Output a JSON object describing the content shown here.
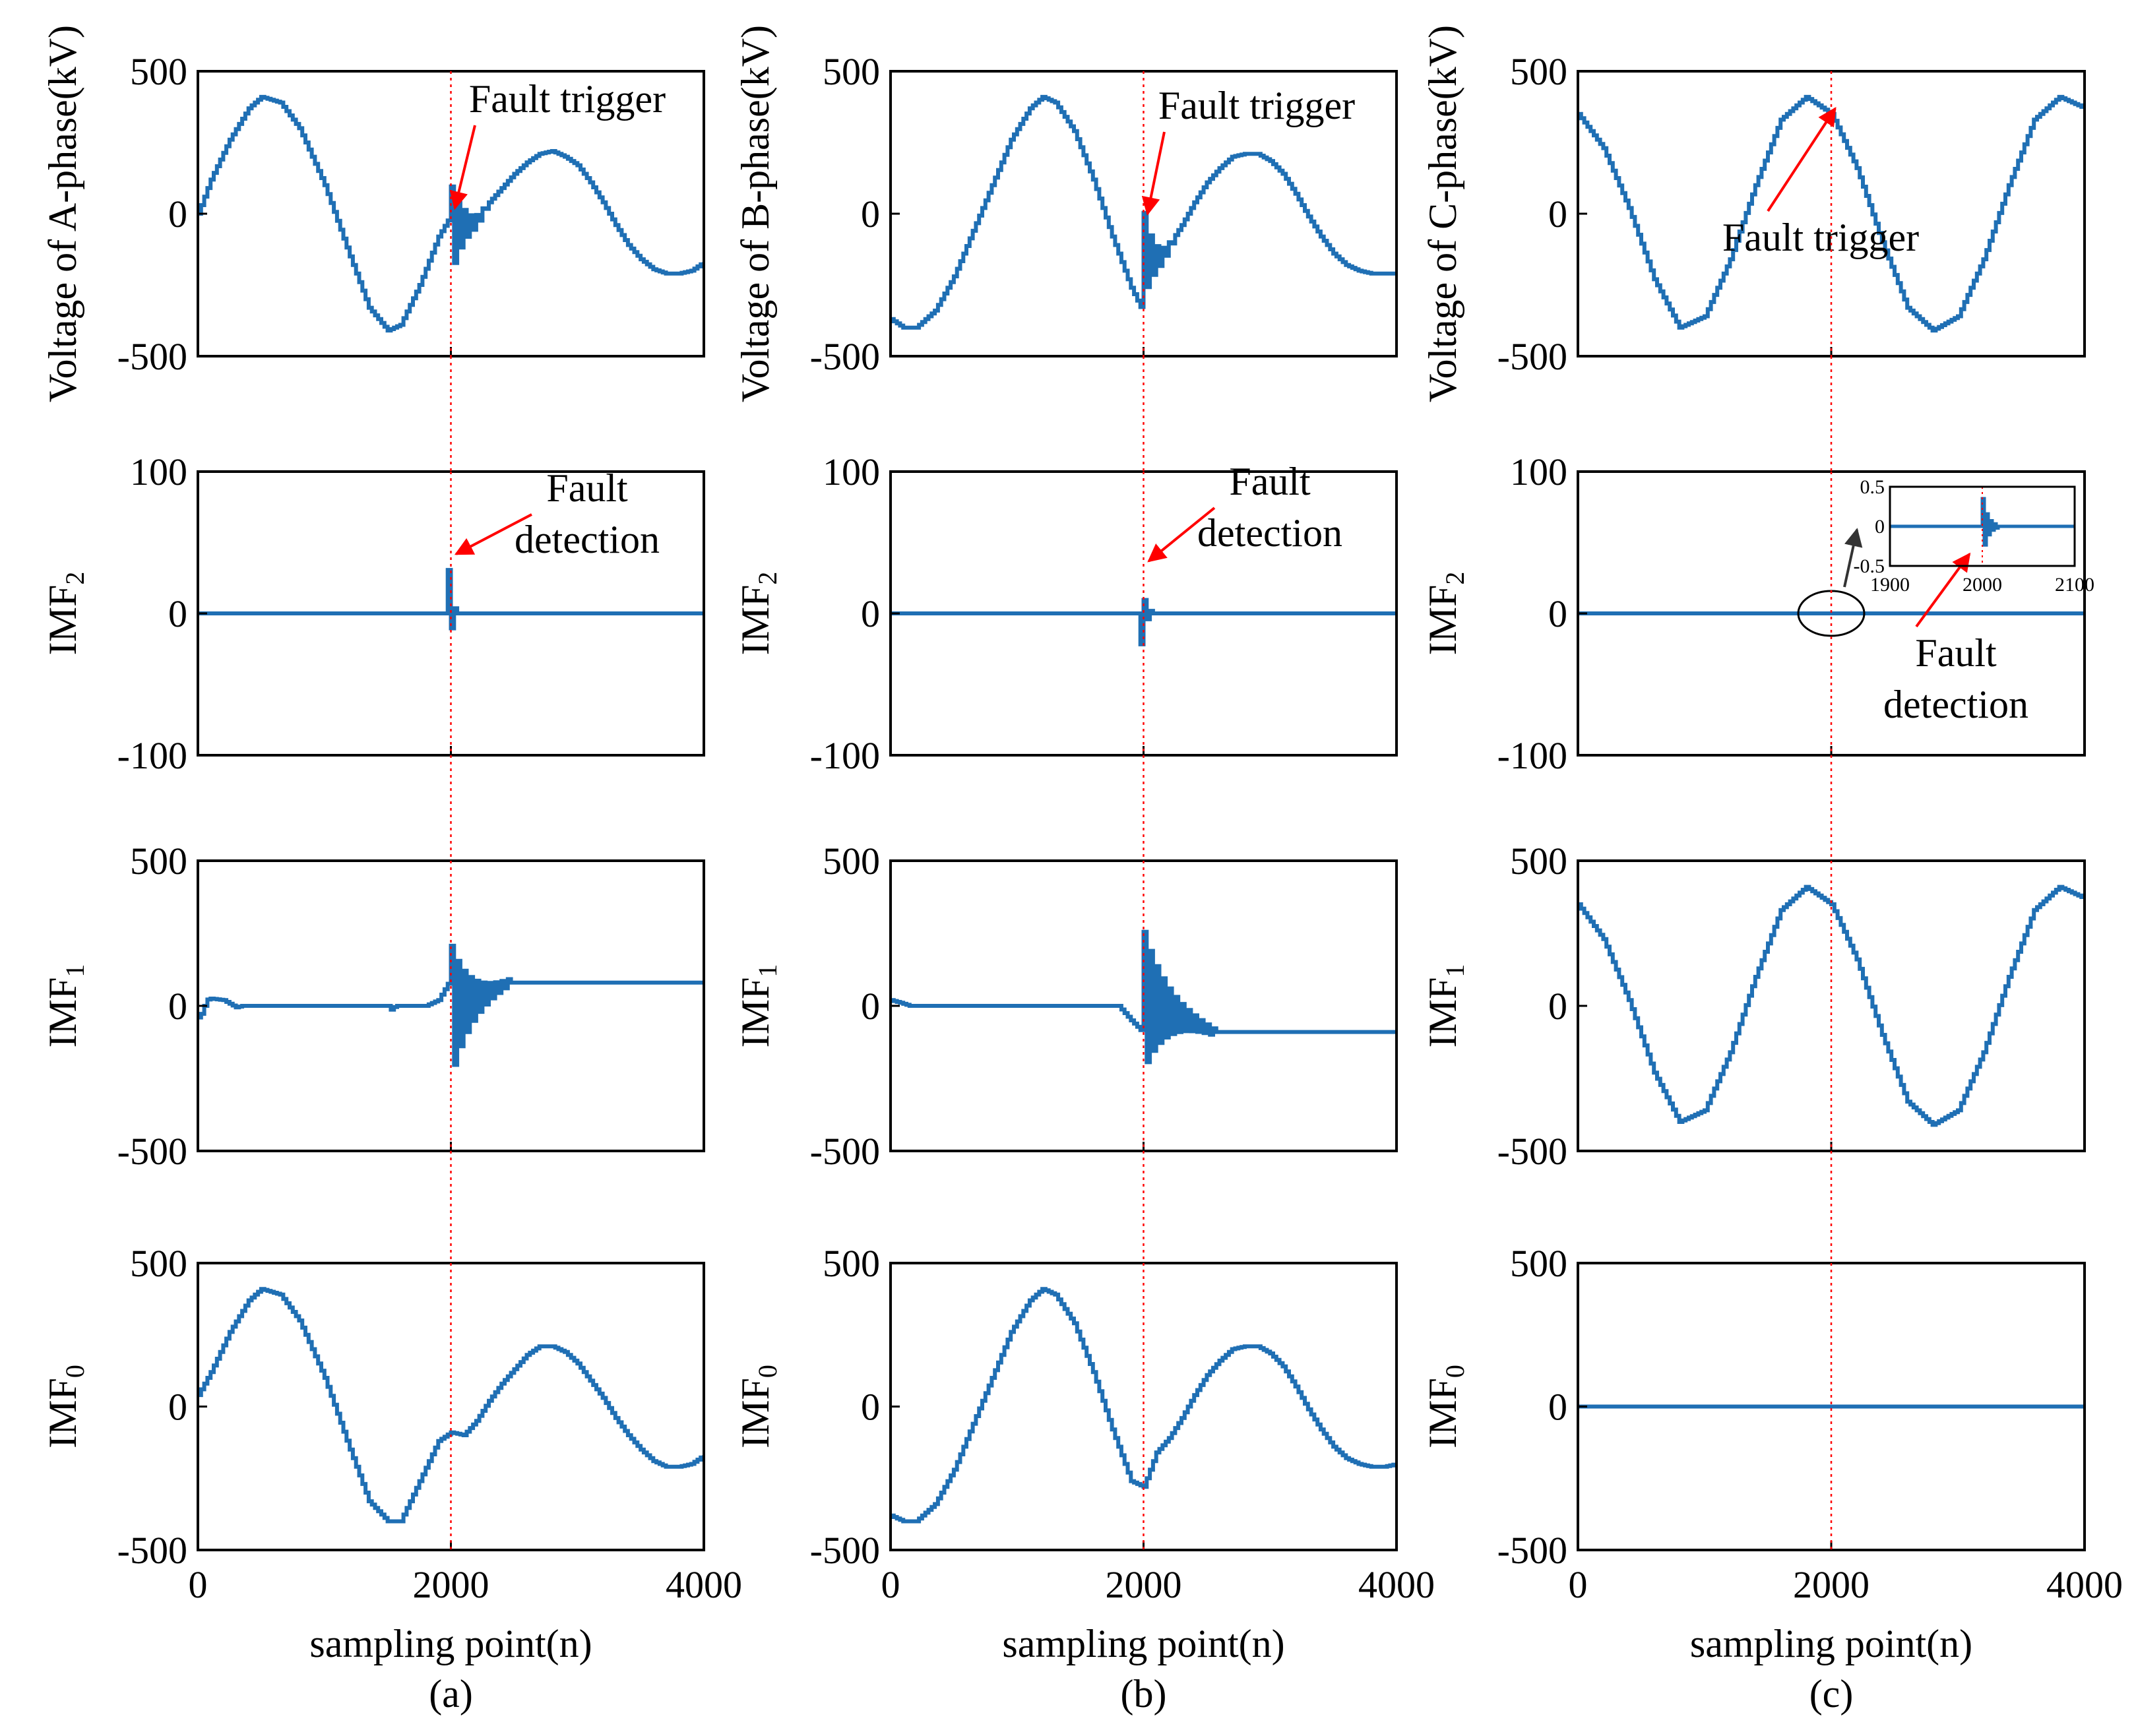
{
  "colors": {
    "signal": "#1f6fb4",
    "marker": "#ff0000",
    "arrow": "#ff0000",
    "inset_arrow": "#333333"
  },
  "fault_sample": 2000,
  "chart_data": [
    {
      "type": "line",
      "column_label": "(a)",
      "xlabel": "sampling point(n)",
      "xlim": [
        0,
        4000
      ],
      "xticks": [
        "0",
        "2000",
        "4000"
      ],
      "rows": [
        {
          "ylabel": "Voltage of A-phase(kV)",
          "ylabel_sub": "",
          "ylim": [
            -500,
            500
          ],
          "yticks": [
            "500",
            "0",
            "-500"
          ],
          "series": {
            "name": "",
            "x": [
              0,
              100,
              250,
              400,
              500,
              650,
              800,
              1000,
              1200,
              1350,
              1500,
              1600,
              1750,
              1900,
              1980,
              2000,
              2050,
              2100,
              2150,
              2200,
              2300,
              2400,
              2500,
              2600,
              2700,
              2800,
              2900,
              3000,
              3100,
              3200,
              3300,
              3400,
              3500,
              3600,
              3700,
              3800,
              3900,
              4000
            ],
            "y": [
              0,
              120,
              260,
              370,
              410,
              390,
              300,
              100,
              -150,
              -330,
              -410,
              -390,
              -250,
              -80,
              -20,
              0,
              -30,
              -10,
              -20,
              -10,
              40,
              90,
              140,
              180,
              210,
              220,
              200,
              170,
              110,
              40,
              -40,
              -110,
              -160,
              -195,
              -210,
              -210,
              -200,
              -170
            ]
          },
          "burst": {
            "x0": 1990,
            "x1": 2280,
            "amp": 170,
            "center": -60
          },
          "annotation": {
            "lines": [
              "Fault trigger"
            ],
            "target": [
              2000,
              10
            ]
          }
        },
        {
          "ylabel": "IMF",
          "ylabel_sub": "2",
          "ylim": [
            -100,
            100
          ],
          "yticks": [
            "100",
            "0",
            "-100"
          ],
          "series": {
            "name": "",
            "x": [
              0,
              4000
            ],
            "y": [
              0,
              0
            ]
          },
          "burst": {
            "x0": 1970,
            "x1": 2040,
            "amp": 38,
            "center": 0
          },
          "annotation": {
            "lines": [
              "Fault",
              "detection"
            ],
            "target": [
              2010,
              40
            ]
          }
        },
        {
          "ylabel": "IMF",
          "ylabel_sub": "1",
          "ylim": [
            -500,
            500
          ],
          "yticks": [
            "500",
            "0",
            "-500"
          ],
          "series": {
            "name": "",
            "x": [
              0,
              40,
              60,
              100,
              200,
              300,
              350,
              1500,
              1520,
              1560,
              1700,
              1800,
              1900,
              1980
            ],
            "y": [
              -40,
              -20,
              20,
              25,
              20,
              -5,
              0,
              0,
              -15,
              0,
              0,
              0,
              20,
              80
            ]
          },
          "burst": {
            "x0": 1990,
            "x1": 2450,
            "amp": 240,
            "center": -20
          },
          "annotation": null
        },
        {
          "ylabel": "IMF",
          "ylabel_sub": "0",
          "ylim": [
            -500,
            500
          ],
          "yticks": [
            "500",
            "0",
            "-500"
          ],
          "series": {
            "name": "",
            "x": [
              0,
              100,
              250,
              400,
              500,
              650,
              800,
              1000,
              1200,
              1350,
              1500,
              1600,
              1750,
              1900,
              2000,
              2100,
              2200,
              2300,
              2400,
              2500,
              2600,
              2700,
              2800,
              2900,
              3000,
              3100,
              3200,
              3300,
              3400,
              3500,
              3600,
              3700,
              3800,
              3900,
              4000
            ],
            "y": [
              40,
              120,
              260,
              370,
              410,
              390,
              300,
              100,
              -150,
              -330,
              -400,
              -400,
              -260,
              -120,
              -90,
              -100,
              -50,
              20,
              80,
              130,
              180,
              210,
              210,
              190,
              150,
              90,
              30,
              -40,
              -100,
              -150,
              -190,
              -210,
              -210,
              -200,
              -170
            ]
          },
          "burst": null,
          "annotation": null
        }
      ]
    },
    {
      "type": "line",
      "column_label": "(b)",
      "xlabel": "sampling point(n)",
      "xlim": [
        0,
        4000
      ],
      "xticks": [
        "0",
        "2000",
        "4000"
      ],
      "rows": [
        {
          "ylabel": "Voltage of B-phase(kV)",
          "ylabel_sub": "",
          "ylim": [
            -500,
            500
          ],
          "yticks": [
            "500",
            "0",
            "-500"
          ],
          "series": {
            "name": "",
            "x": [
              0,
              100,
              200,
              350,
              500,
              650,
              800,
              950,
              1100,
              1200,
              1300,
              1450,
              1600,
              1750,
              1900,
              2000,
              2050,
              2100,
              2200,
              2300,
              2400,
              2500,
              2600,
              2700,
              2800,
              2900,
              3000,
              3100,
              3200,
              3300,
              3400,
              3500,
              3600,
              3700,
              3800,
              3900,
              4000
            ],
            "y": [
              -370,
              -400,
              -400,
              -340,
              -220,
              -60,
              100,
              260,
              370,
              410,
              390,
              290,
              120,
              -80,
              -260,
              -350,
              -230,
              -190,
              -110,
              -40,
              40,
              110,
              160,
              200,
              210,
              210,
              185,
              140,
              70,
              -10,
              -80,
              -140,
              -180,
              -200,
              -210,
              -210,
              -210
            ]
          },
          "burst": {
            "x0": 1990,
            "x1": 2240,
            "amp": 160,
            "center": -130
          },
          "annotation": {
            "lines": [
              "Fault trigger"
            ],
            "target": [
              2000,
              -10
            ]
          }
        },
        {
          "ylabel": "IMF",
          "ylabel_sub": "2",
          "ylim": [
            -100,
            100
          ],
          "yticks": [
            "100",
            "0",
            "-100"
          ],
          "series": {
            "name": "",
            "x": [
              0,
              4000
            ],
            "y": [
              0,
              0
            ]
          },
          "burst": {
            "x0": 1960,
            "x1": 2050,
            "amp": 36,
            "center": 0
          },
          "annotation": {
            "lines": [
              "Fault",
              "detection"
            ],
            "target": [
              2010,
              35
            ]
          }
        },
        {
          "ylabel": "IMF",
          "ylabel_sub": "1",
          "ylim": [
            -500,
            500
          ],
          "yticks": [
            "500",
            "0",
            "-500"
          ],
          "series": {
            "name": "",
            "x": [
              0,
              80,
              150,
              1600,
              1700,
              1800,
              1900,
              1990
            ],
            "y": [
              20,
              10,
              0,
              0,
              0,
              0,
              -50,
              -90
            ]
          },
          "burst": {
            "x0": 1990,
            "x1": 2550,
            "amp": 250,
            "center": 20
          },
          "annotation": null
        },
        {
          "ylabel": "IMF",
          "ylabel_sub": "0",
          "ylim": [
            -500,
            500
          ],
          "yticks": [
            "500",
            "0",
            "-500"
          ],
          "series": {
            "name": "",
            "x": [
              0,
              100,
              200,
              350,
              500,
              650,
              800,
              950,
              1100,
              1200,
              1300,
              1450,
              1600,
              1750,
              1900,
              2000,
              2050,
              2100,
              2200,
              2300,
              2400,
              2500,
              2600,
              2700,
              2800,
              2900,
              3000,
              3100,
              3200,
              3300,
              3400,
              3500,
              3600,
              3700,
              3800,
              3900,
              4000
            ],
            "y": [
              -380,
              -400,
              -400,
              -340,
              -220,
              -60,
              100,
              260,
              370,
              410,
              390,
              290,
              120,
              -80,
              -260,
              -280,
              -220,
              -160,
              -110,
              -40,
              40,
              110,
              160,
              200,
              210,
              210,
              185,
              140,
              70,
              -10,
              -80,
              -140,
              -180,
              -200,
              -210,
              -210,
              -200
            ]
          },
          "burst": null,
          "annotation": null
        }
      ]
    },
    {
      "type": "line",
      "column_label": "(c)",
      "xlabel": "sampling point(n)",
      "xlim": [
        0,
        4000
      ],
      "xticks": [
        "0",
        "2000",
        "4000"
      ],
      "rows": [
        {
          "ylabel": "Voltage of C-phase(kV)",
          "ylabel_sub": "",
          "ylim": [
            -500,
            500
          ],
          "yticks": [
            "500",
            "0",
            "-500"
          ],
          "series": {
            "name": "",
            "x": [
              0,
              200,
              400,
              600,
              800,
              1000,
              1200,
              1400,
              1600,
              1800,
              2000,
              2200,
              2400,
              2600,
              2800,
              3000,
              3200,
              3400,
              3600,
              3800,
              4000
            ],
            "y": [
              350,
              230,
              20,
              -230,
              -400,
              -360,
              -160,
              100,
              330,
              410,
              350,
              160,
              -100,
              -330,
              -410,
              -360,
              -160,
              100,
              330,
              410,
              370
            ]
          },
          "burst": null,
          "annotation": {
            "lines": [
              "Fault trigger"
            ],
            "target": [
              2000,
              360
            ]
          }
        },
        {
          "ylabel": "IMF",
          "ylabel_sub": "2",
          "ylim": [
            -100,
            100
          ],
          "yticks": [
            "100",
            "0",
            "-100"
          ],
          "series": {
            "name": "",
            "x": [
              0,
              4000
            ],
            "y": [
              0,
              0
            ]
          },
          "burst": null,
          "annotation": {
            "lines": [
              "Fault",
              "detection"
            ],
            "target": [
              3060,
              40
            ]
          },
          "inset": {
            "xlim": [
              1900,
              2100
            ],
            "ylim": [
              -0.5,
              0.5
            ],
            "xticks": [
              "1900",
              "2000",
              "2100"
            ],
            "yticks": [
              "0.5",
              "0",
              "-0.5"
            ]
          }
        },
        {
          "ylabel": "IMF",
          "ylabel_sub": "1",
          "ylim": [
            -500,
            500
          ],
          "yticks": [
            "500",
            "0",
            "-500"
          ],
          "series": {
            "name": "",
            "x": [
              0,
              200,
              400,
              600,
              800,
              1000,
              1200,
              1400,
              1600,
              1800,
              2000,
              2200,
              2400,
              2600,
              2800,
              3000,
              3200,
              3400,
              3600,
              3800,
              4000
            ],
            "y": [
              350,
              230,
              20,
              -230,
              -400,
              -360,
              -160,
              100,
              330,
              410,
              350,
              160,
              -100,
              -330,
              -410,
              -360,
              -160,
              100,
              330,
              410,
              370
            ]
          },
          "burst": null,
          "annotation": null
        },
        {
          "ylabel": "IMF",
          "ylabel_sub": "0",
          "ylim": [
            -500,
            500
          ],
          "yticks": [
            "500",
            "0",
            "-500"
          ],
          "series": {
            "name": "",
            "x": [
              0,
              4000
            ],
            "y": [
              0,
              0
            ]
          },
          "burst": null,
          "annotation": null
        }
      ]
    }
  ]
}
